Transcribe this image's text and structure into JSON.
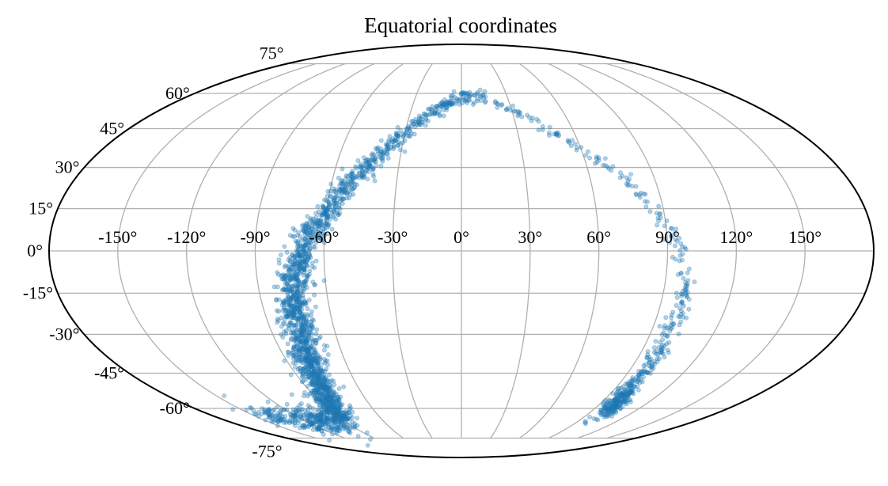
{
  "chart_data": {
    "type": "scatter",
    "projection": "mollweide",
    "title": "Equatorial coordinates",
    "xlabel": "",
    "ylabel": "",
    "xlim": [
      -180,
      180
    ],
    "ylim": [
      -90,
      90
    ],
    "grid": true,
    "legend": "none",
    "x_ticks": [
      -150,
      -120,
      -90,
      -60,
      -30,
      0,
      30,
      60,
      90,
      120,
      150
    ],
    "y_ticks": [
      -75,
      -60,
      -45,
      -30,
      -15,
      0,
      15,
      30,
      45,
      60,
      75
    ],
    "x_tick_labels": [
      "-150°",
      "-120°",
      "-90°",
      "-60°",
      "-30°",
      "0°",
      "30°",
      "60°",
      "90°",
      "120°",
      "150°"
    ],
    "y_tick_labels": [
      "-75°",
      "-60°",
      "-45°",
      "-30°",
      "-15°",
      "0°",
      "15°",
      "30°",
      "45°",
      "60°",
      "75°"
    ],
    "colors": {
      "points": "#1f77b4",
      "grid": "#b0b0b0",
      "frame": "#000000"
    },
    "point_alpha": 0.35,
    "series": [
      {
        "color": "#1f77b4",
        "trace_points": [
          {
            "lon": -145,
            "lat": -63
          },
          {
            "lon": -125,
            "lat": -66
          },
          {
            "lon": -108,
            "lat": -66
          },
          {
            "lon": -90,
            "lat": -64
          },
          {
            "lon": -83,
            "lat": -55
          },
          {
            "lon": -80,
            "lat": -45
          },
          {
            "lon": -77,
            "lat": -35
          },
          {
            "lon": -76,
            "lat": -25
          },
          {
            "lon": -75,
            "lat": -15
          },
          {
            "lon": -72,
            "lat": -6
          },
          {
            "lon": -68,
            "lat": 3
          },
          {
            "lon": -62,
            "lat": 12
          },
          {
            "lon": -55,
            "lat": 21
          },
          {
            "lon": -47,
            "lat": 29
          },
          {
            "lon": -38,
            "lat": 37
          },
          {
            "lon": -29,
            "lat": 44
          },
          {
            "lon": -18,
            "lat": 51
          },
          {
            "lon": -8,
            "lat": 56
          },
          {
            "lon": 2,
            "lat": 59
          },
          {
            "lon": 13,
            "lat": 58
          },
          {
            "lon": 25,
            "lat": 54
          },
          {
            "lon": 38,
            "lat": 49
          },
          {
            "lon": 50,
            "lat": 43
          },
          {
            "lon": 62,
            "lat": 36
          },
          {
            "lon": 72,
            "lat": 29
          },
          {
            "lon": 80,
            "lat": 22
          },
          {
            "lon": 87,
            "lat": 13
          },
          {
            "lon": 93,
            "lat": 5
          },
          {
            "lon": 97,
            "lat": -4
          },
          {
            "lon": 99,
            "lat": -13
          },
          {
            "lon": 100,
            "lat": -23
          },
          {
            "lon": 99,
            "lat": -33
          },
          {
            "lon": 98,
            "lat": -43
          },
          {
            "lon": 97,
            "lat": -52
          },
          {
            "lon": 99,
            "lat": -58
          },
          {
            "lon": 104,
            "lat": -61
          }
        ],
        "dense_spread_deg": [
          4,
          4,
          4,
          4,
          4,
          4,
          4,
          3.5,
          3.5,
          3,
          3,
          2.5,
          2.5,
          2.5,
          2,
          2,
          2,
          2,
          2,
          2,
          1.5,
          1.5,
          1.5,
          1.5,
          1.5,
          1.5,
          1.5,
          2,
          2,
          2,
          2.5,
          2.5,
          3,
          3,
          3,
          3
        ],
        "density_weights": [
          6,
          8,
          10,
          14,
          16,
          14,
          12,
          12,
          10,
          9,
          8,
          7,
          6,
          5,
          4,
          3,
          3,
          2,
          2,
          1,
          1,
          1,
          1,
          1,
          1,
          1,
          1,
          1,
          1,
          2,
          2,
          3,
          4,
          6,
          8,
          8
        ]
      }
    ]
  }
}
